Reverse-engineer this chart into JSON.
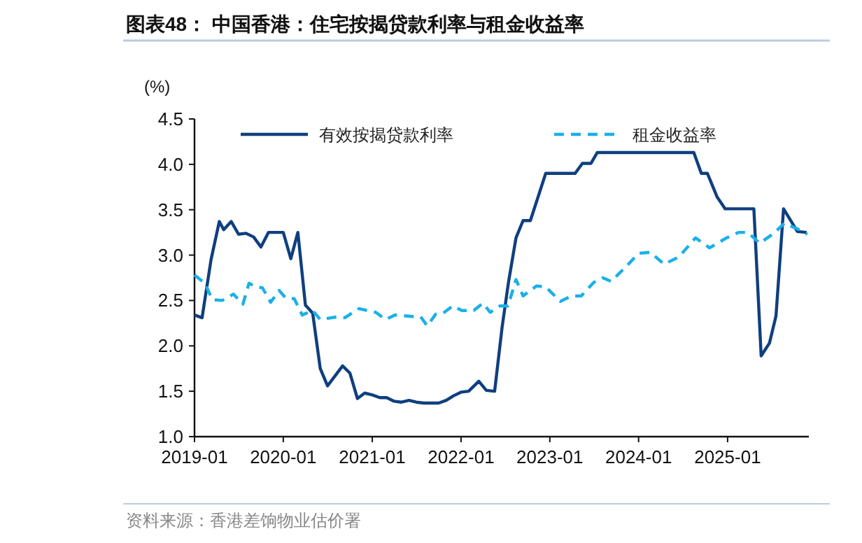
{
  "chart_data": {
    "type": "line",
    "title": "图表48：  中国香港：住宅按揭贷款利率与租金收益率",
    "ylabel": "(%)",
    "annotations": [
      "资料来源：香港差饷物业估价署"
    ],
    "xlim": [
      "2019-01",
      "2025-12"
    ],
    "xticks": [
      "2019-01",
      "2020-01",
      "2021-01",
      "2022-01",
      "2023-01",
      "2024-01",
      "2025-01"
    ],
    "ylim": [
      1,
      4.5
    ],
    "yticks": [
      {
        "value": 1,
        "label": "1.0"
      },
      {
        "value": 1.5,
        "label": "1.5"
      },
      {
        "value": 2,
        "label": "2.0"
      },
      {
        "value": 2.5,
        "label": "2.5"
      },
      {
        "value": 3,
        "label": "3.0"
      },
      {
        "value": 3.5,
        "label": "3.5"
      },
      {
        "value": 4,
        "label": "4.0"
      },
      {
        "value": 4.5,
        "label": "4.5"
      }
    ],
    "legend": "top",
    "grid": false,
    "series": [
      {
        "name": "有效按揭贷款利率",
        "color": "#0f3f7f",
        "line_style": "solid",
        "x": [
          "2019-01",
          "2019-02",
          "2019-03-10",
          "2019-04-13",
          "2019-05",
          "2019-06",
          "2019-07",
          "2019-08",
          "2019-09",
          "2019-10",
          "2019-11",
          "2019-12",
          "2020-01",
          "2020-02",
          "2020-03",
          "2020-04",
          "2020-05",
          "2020-06",
          "2020-07",
          "2020-08",
          "2020-09",
          "2020-10",
          "2020-11",
          "2020-12",
          "2021-01",
          "2021-02",
          "2021-03",
          "2021-04",
          "2021-05",
          "2021-06",
          "2021-07",
          "2021-08",
          "2021-09",
          "2021-10",
          "2021-11",
          "2021-12",
          "2022-01",
          "2022-02",
          "2022-03-15",
          "2022-04-15",
          "2022-05-19",
          "2022-06-19",
          "2022-07-15",
          "2022-08-15",
          "2022-09-13",
          "2022-10-13",
          "2022-12-15",
          "2023-04-15",
          "2023-05-15",
          "2023-06-19",
          "2023-07-15",
          "2024-08-15",
          "2024-09-15",
          "2024-10-10",
          "2024-11-19",
          "2024-12-22",
          "2025-04-19",
          "2025-05-19",
          "2025-06-22",
          "2025-07-19",
          "2025-08-19",
          "2025-10-15",
          "2025-11-22"
        ],
        "values": [
          2.34,
          2.31,
          2.95,
          3.37,
          3.28,
          3.37,
          3.23,
          3.24,
          3.2,
          3.09,
          3.25,
          3.25,
          3.25,
          2.96,
          3.25,
          2.45,
          2.36,
          1.75,
          1.56,
          1.67,
          1.78,
          1.7,
          1.42,
          1.48,
          1.46,
          1.43,
          1.43,
          1.39,
          1.38,
          1.4,
          1.38,
          1.37,
          1.37,
          1.37,
          1.4,
          1.45,
          1.49,
          1.5,
          1.61,
          1.51,
          1.5,
          2.21,
          2.7,
          3.19,
          3.38,
          3.38,
          3.9,
          3.9,
          4.01,
          4.01,
          4.13,
          4.13,
          3.9,
          3.9,
          3.64,
          3.51,
          3.51,
          1.89,
          2.03,
          2.33,
          3.51,
          3.26,
          3.25
        ]
      },
      {
        "name": "租金收益率",
        "color": "#1ab0e8",
        "line_style": "dashed",
        "x": [
          "2019-01",
          "2019-02-13",
          "2019-03-15",
          "2019-04-25",
          "2019-06-10",
          "2019-07-19",
          "2019-08-13",
          "2019-09-10",
          "2019-10-07",
          "2019-11-10",
          "2019-12-15",
          "2020-01-10",
          "2020-02-15",
          "2020-03-19",
          "2020-05-01",
          "2020-06-01",
          "2020-08-10",
          "2020-09-10",
          "2020-11-07",
          "2021-01-15",
          "2021-02-25",
          "2021-04-04",
          "2021-07-01",
          "2021-07-19",
          "2021-08-15",
          "2021-09-19",
          "2021-10-19",
          "2021-11-28",
          "2022-01-04",
          "2022-02-22",
          "2022-04-01",
          "2022-05-01",
          "2022-06-10",
          "2022-07-13",
          "2022-08-15",
          "2022-09-13",
          "2022-11-07",
          "2022-12-15",
          "2023-02-13",
          "2023-04-01",
          "2023-05-10",
          "2023-07-01",
          "2023-08-07",
          "2023-09-10",
          "2023-11-13",
          "2024-01-01",
          "2024-02-19",
          "2024-04-15",
          "2024-06-15",
          "2024-08-22",
          "2024-10-19",
          "2024-12-28",
          "2025-02-15",
          "2025-03-25",
          "2025-05-13",
          "2025-07-10",
          "2025-08-22",
          "2025-10-15",
          "2025-11-25"
        ],
        "values": [
          2.78,
          2.69,
          2.51,
          2.5,
          2.57,
          2.46,
          2.69,
          2.65,
          2.64,
          2.48,
          2.61,
          2.53,
          2.52,
          2.34,
          2.39,
          2.29,
          2.32,
          2.31,
          2.41,
          2.37,
          2.29,
          2.34,
          2.32,
          2.32,
          2.22,
          2.35,
          2.36,
          2.44,
          2.39,
          2.39,
          2.47,
          2.37,
          2.44,
          2.44,
          2.73,
          2.55,
          2.66,
          2.65,
          2.49,
          2.55,
          2.55,
          2.7,
          2.75,
          2.71,
          2.88,
          3.02,
          3.03,
          2.9,
          2.98,
          3.19,
          3.08,
          3.19,
          3.25,
          3.25,
          3.13,
          3.24,
          3.35,
          3.29,
          3.23
        ]
      }
    ]
  }
}
